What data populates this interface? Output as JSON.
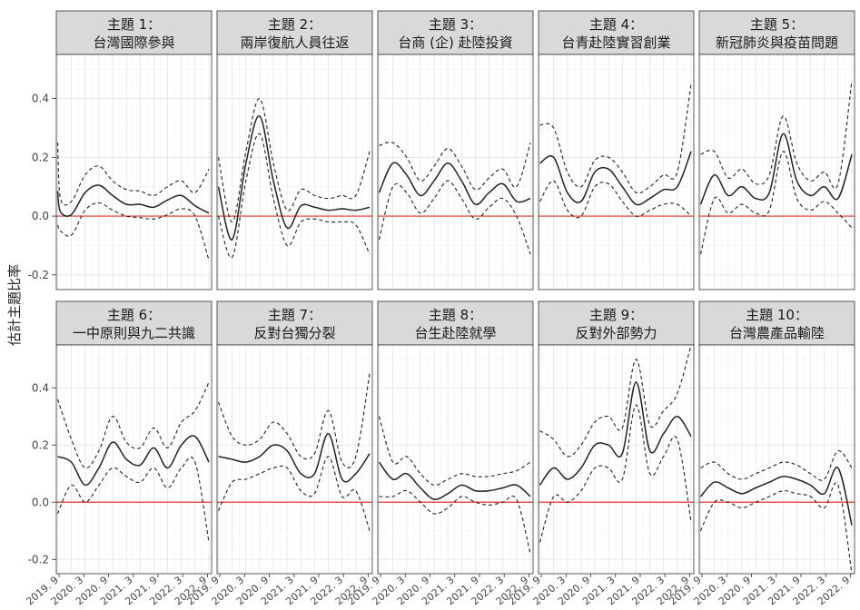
{
  "chart_data": {
    "type": "line",
    "ylabel": "估計主題比率",
    "ylim": [
      -0.25,
      0.55
    ],
    "y_ticks": [
      -0.2,
      0.0,
      0.2,
      0.4
    ],
    "y_tick_labels": [
      "-0.2",
      "0.0",
      "0.2",
      "0.4"
    ],
    "x_tick_labels": [
      "2019. 9",
      "2020. 3",
      "2020. 9",
      "2021. 3",
      "2021. 9",
      "2022. 3",
      "2022. 9"
    ],
    "reference_line": {
      "y": 0.0,
      "color": "#e8302a"
    },
    "line_color": "#222222",
    "strip_color": "#d9d9d9",
    "grid": true,
    "panels": [
      {
        "title_line1": "主題 1：",
        "title_line2": "台灣國際參與",
        "x": [
          0,
          0.1,
          0.5,
          1,
          1.5,
          2,
          2.5,
          3,
          3.5,
          4,
          4.5,
          5,
          5.5
        ],
        "y": [
          0.085,
          0.015,
          0.005,
          0.08,
          0.105,
          0.07,
          0.04,
          0.04,
          0.03,
          0.055,
          0.07,
          0.035,
          0.01
        ],
        "upper": [
          0.25,
          0.06,
          0.05,
          0.14,
          0.17,
          0.12,
          0.09,
          0.085,
          0.07,
          0.1,
          0.12,
          0.08,
          0.16
        ],
        "lower": [
          -0.03,
          -0.05,
          -0.065,
          0.02,
          0.045,
          0.02,
          0.0,
          -0.005,
          -0.01,
          0.005,
          0.025,
          0.0,
          -0.15
        ]
      },
      {
        "title_line1": "主題 2：",
        "title_line2": "兩岸復航人員往返",
        "x": [
          0,
          0.5,
          1,
          1.5,
          2,
          2.5,
          3,
          3.5,
          4,
          4.5,
          5,
          5.5
        ],
        "y": [
          0.1,
          -0.08,
          0.18,
          0.34,
          0.12,
          -0.04,
          0.035,
          0.03,
          0.02,
          0.025,
          0.02,
          0.03
        ],
        "upper": [
          0.2,
          -0.02,
          0.22,
          0.4,
          0.18,
          0.02,
          0.09,
          0.07,
          0.06,
          0.07,
          0.07,
          0.22
        ],
        "lower": [
          0.0,
          -0.14,
          0.12,
          0.28,
          0.06,
          -0.1,
          -0.02,
          -0.01,
          -0.02,
          -0.02,
          -0.03,
          -0.13
        ]
      },
      {
        "title_line1": "主題 3：",
        "title_line2": "台商 (企) 赴陸投資",
        "x": [
          0,
          0.5,
          1,
          1.5,
          2,
          2.5,
          3,
          3.5,
          4,
          4.5,
          5,
          5.5
        ],
        "y": [
          0.08,
          0.18,
          0.14,
          0.07,
          0.12,
          0.18,
          0.12,
          0.04,
          0.08,
          0.11,
          0.05,
          0.06
        ],
        "upper": [
          0.24,
          0.25,
          0.2,
          0.12,
          0.17,
          0.23,
          0.17,
          0.09,
          0.13,
          0.16,
          0.1,
          0.25
        ],
        "lower": [
          -0.08,
          0.1,
          0.08,
          0.01,
          0.06,
          0.12,
          0.06,
          -0.01,
          0.03,
          0.06,
          0.0,
          -0.13
        ]
      },
      {
        "title_line1": "主題 4：",
        "title_line2": "台青赴陸實習創業",
        "x": [
          0,
          0.5,
          1,
          1.5,
          2,
          2.5,
          3,
          3.5,
          4,
          4.5,
          5,
          5.5
        ],
        "y": [
          0.18,
          0.2,
          0.08,
          0.05,
          0.15,
          0.16,
          0.1,
          0.04,
          0.06,
          0.09,
          0.1,
          0.22
        ],
        "upper": [
          0.31,
          0.3,
          0.15,
          0.1,
          0.19,
          0.2,
          0.15,
          0.08,
          0.1,
          0.14,
          0.15,
          0.45
        ],
        "lower": [
          0.05,
          0.12,
          0.02,
          0.0,
          0.1,
          0.11,
          0.05,
          0.0,
          0.02,
          0.04,
          0.04,
          0.0
        ]
      },
      {
        "title_line1": "主題 5：",
        "title_line2": "新冠肺炎與疫苗問題",
        "x": [
          0,
          0.5,
          1,
          1.5,
          2,
          2.5,
          3,
          3.5,
          4,
          4.5,
          5,
          5.5
        ],
        "y": [
          0.04,
          0.14,
          0.07,
          0.1,
          0.06,
          0.08,
          0.28,
          0.12,
          0.07,
          0.1,
          0.06,
          0.21
        ],
        "upper": [
          0.21,
          0.22,
          0.13,
          0.16,
          0.11,
          0.14,
          0.34,
          0.18,
          0.12,
          0.15,
          0.11,
          0.46
        ],
        "lower": [
          -0.13,
          0.06,
          0.01,
          0.04,
          0.01,
          0.02,
          0.22,
          0.06,
          0.02,
          0.05,
          0.01,
          -0.04
        ]
      },
      {
        "title_line1": "主題 6：",
        "title_line2": "一中原則與九二共識",
        "x": [
          0,
          0.5,
          1,
          1.5,
          2,
          2.5,
          3,
          3.5,
          4,
          4.5,
          5,
          5.5
        ],
        "y": [
          0.16,
          0.14,
          0.06,
          0.12,
          0.21,
          0.15,
          0.13,
          0.19,
          0.12,
          0.2,
          0.23,
          0.14
        ],
        "upper": [
          0.36,
          0.22,
          0.12,
          0.18,
          0.3,
          0.21,
          0.19,
          0.26,
          0.19,
          0.28,
          0.32,
          0.42
        ],
        "lower": [
          -0.04,
          0.06,
          0.0,
          0.06,
          0.12,
          0.09,
          0.07,
          0.12,
          0.05,
          0.12,
          0.14,
          -0.14
        ]
      },
      {
        "title_line1": "主題 7：",
        "title_line2": "反對台獨分裂",
        "x": [
          0,
          0.5,
          1,
          1.5,
          2,
          2.5,
          3,
          3.5,
          4,
          4.5,
          5,
          5.5
        ],
        "y": [
          0.16,
          0.15,
          0.14,
          0.16,
          0.2,
          0.18,
          0.1,
          0.1,
          0.24,
          0.08,
          0.1,
          0.17
        ],
        "upper": [
          0.35,
          0.23,
          0.2,
          0.22,
          0.28,
          0.24,
          0.16,
          0.17,
          0.32,
          0.14,
          0.16,
          0.45
        ],
        "lower": [
          -0.03,
          0.07,
          0.08,
          0.1,
          0.12,
          0.12,
          0.04,
          0.03,
          0.16,
          0.02,
          0.04,
          -0.1
        ]
      },
      {
        "title_line1": "主題 8：",
        "title_line2": "台生赴陸就學",
        "x": [
          0,
          0.5,
          1,
          1.5,
          2,
          2.5,
          3,
          3.5,
          4,
          4.5,
          5,
          5.5
        ],
        "y": [
          0.14,
          0.08,
          0.1,
          0.05,
          0.01,
          0.03,
          0.06,
          0.04,
          0.04,
          0.05,
          0.06,
          0.02
        ],
        "upper": [
          0.3,
          0.14,
          0.16,
          0.1,
          0.06,
          0.08,
          0.1,
          0.09,
          0.09,
          0.1,
          0.11,
          0.14
        ],
        "lower": [
          0.02,
          0.02,
          0.04,
          0.0,
          -0.04,
          -0.02,
          0.02,
          0.0,
          -0.01,
          0.0,
          0.01,
          -0.18
        ]
      },
      {
        "title_line1": "主題 9：",
        "title_line2": "反對外部勢力",
        "x": [
          0,
          0.5,
          1,
          1.5,
          2,
          2.5,
          3,
          3.5,
          4,
          4.5,
          5,
          5.5
        ],
        "y": [
          0.06,
          0.12,
          0.08,
          0.12,
          0.2,
          0.2,
          0.17,
          0.42,
          0.18,
          0.24,
          0.3,
          0.23
        ],
        "upper": [
          0.25,
          0.22,
          0.16,
          0.2,
          0.28,
          0.3,
          0.26,
          0.5,
          0.27,
          0.32,
          0.38,
          0.55
        ],
        "lower": [
          -0.14,
          0.02,
          0.0,
          0.04,
          0.12,
          0.12,
          0.08,
          0.34,
          0.1,
          0.16,
          0.22,
          -0.07
        ]
      },
      {
        "title_line1": "主題 10：",
        "title_line2": "台灣農產品輸陸",
        "x": [
          0,
          0.5,
          1,
          1.5,
          2,
          2.5,
          3,
          3.5,
          4,
          4.5,
          5,
          5.5
        ],
        "y": [
          0.02,
          0.07,
          0.05,
          0.03,
          0.05,
          0.07,
          0.09,
          0.08,
          0.06,
          0.03,
          0.12,
          -0.08
        ],
        "upper": [
          0.12,
          0.14,
          0.1,
          0.08,
          0.1,
          0.12,
          0.14,
          0.13,
          0.1,
          0.08,
          0.18,
          0.12
        ],
        "lower": [
          -0.1,
          0.0,
          0.0,
          -0.02,
          0.0,
          0.02,
          0.04,
          0.03,
          0.02,
          -0.02,
          0.06,
          -0.25
        ]
      }
    ]
  }
}
